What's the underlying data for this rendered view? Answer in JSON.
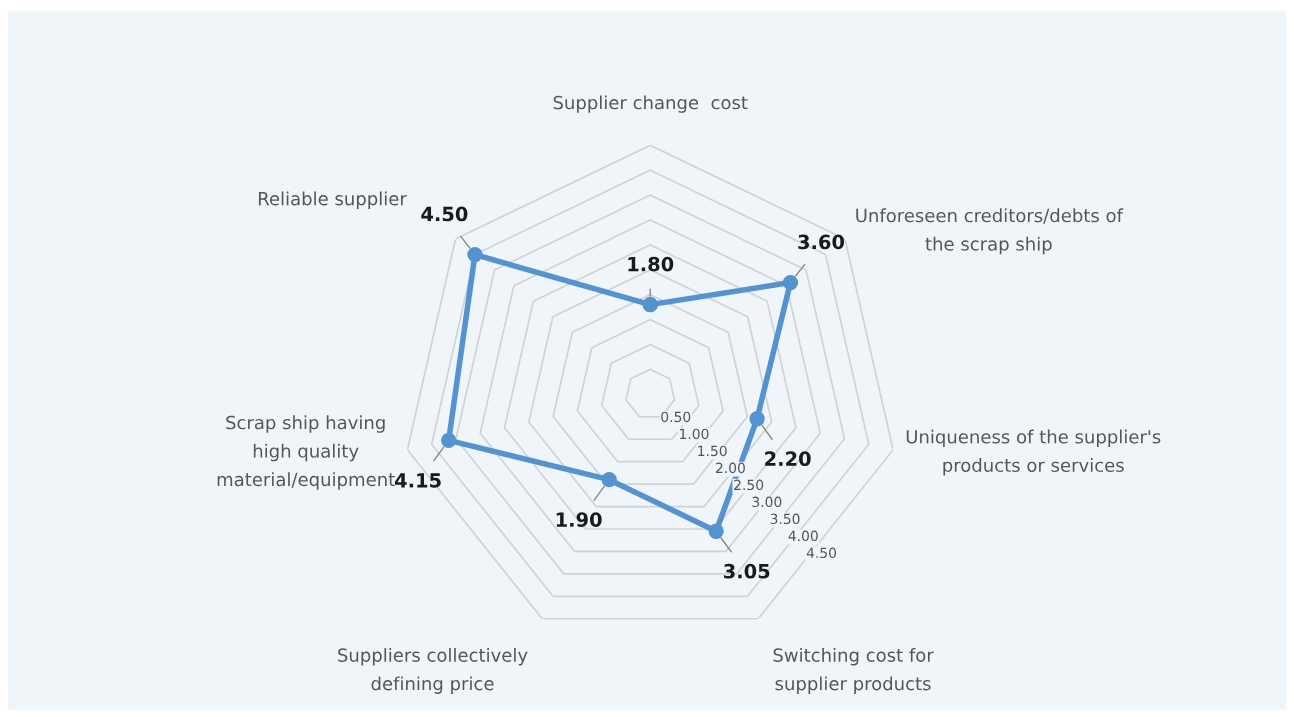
{
  "chart_data": {
    "type": "radar",
    "categories": [
      "Supplier change  cost",
      "Unforeseen creditors/debts of\nthe scrap ship",
      "Uniqueness of the supplier's\nproducts or services",
      "Switching cost for\nsupplier products",
      "Suppliers collectively\ndefining price",
      "Scrap ship having\nhigh quality\nmaterial/equipment",
      "Reliable supplier"
    ],
    "series": [
      {
        "color": "#5593d0",
        "values": [
          1.8,
          3.6,
          2.2,
          3.05,
          1.9,
          4.15,
          4.5
        ],
        "value_labels": [
          "1.80",
          "3.60",
          "2.20",
          "3.05",
          "1.90",
          "4.15",
          "4.50"
        ]
      }
    ],
    "ylim": [
      0,
      5
    ],
    "yticks": [
      {
        "value": 0.5,
        "label": "0.50"
      },
      {
        "value": 1,
        "label": "1.00"
      },
      {
        "value": 1.5,
        "label": "1.50"
      },
      {
        "value": 2,
        "label": "2.00"
      },
      {
        "value": 2.5,
        "label": "2.50"
      },
      {
        "value": 3,
        "label": "3.00"
      },
      {
        "value": 3.5,
        "label": "3.50"
      },
      {
        "value": 4,
        "label": "4.00"
      },
      {
        "value": 4.5,
        "label": "4.50"
      }
    ],
    "grid": true,
    "marker": "circle",
    "line_style": "solid"
  }
}
